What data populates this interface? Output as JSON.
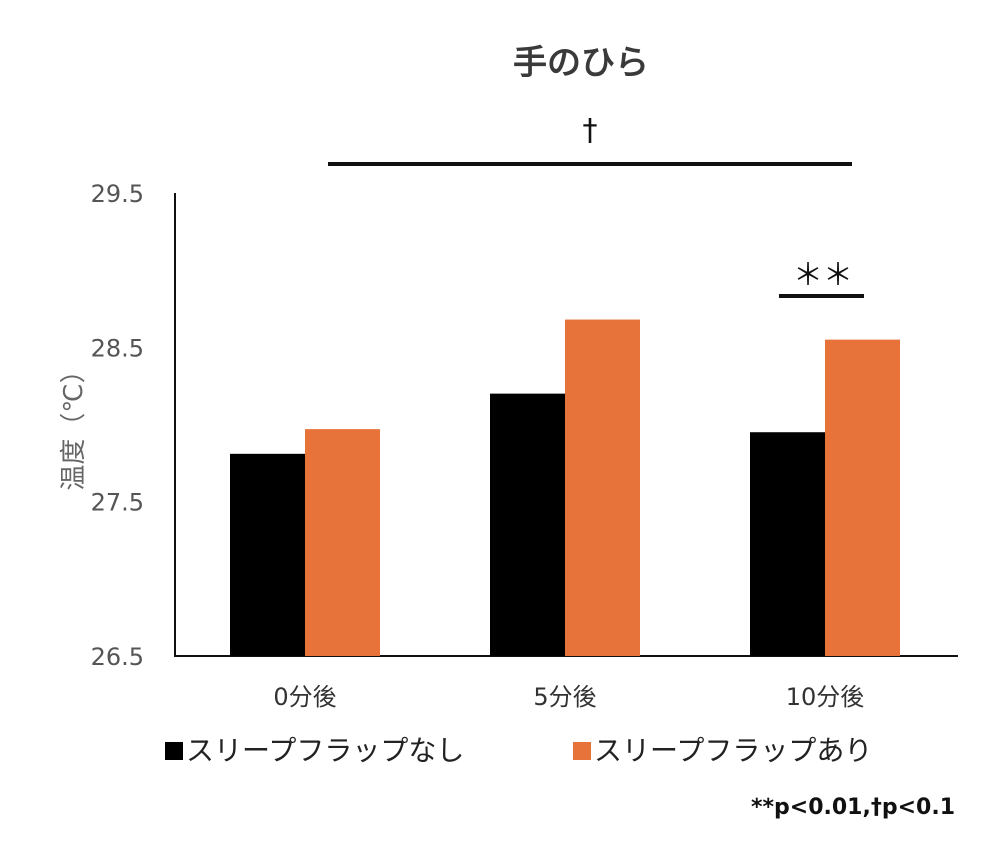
{
  "chart_data": {
    "type": "bar",
    "title": "手のひら",
    "ylabel": "温度（℃）",
    "xlabel": "",
    "ylim": [
      26.5,
      29.5
    ],
    "yticks": [
      "29.5",
      "28.5",
      "27.5",
      "26.5"
    ],
    "categories": [
      "0分後",
      "5分後",
      "10分後"
    ],
    "series": [
      {
        "name": "スリープフラップなし",
        "color": "#000000",
        "values": [
          27.81,
          28.2,
          27.95
        ]
      },
      {
        "name": "スリープフラップあり",
        "color": "#E8733A",
        "values": [
          27.97,
          28.68,
          28.55
        ]
      }
    ],
    "legend": "bottom",
    "grid": false,
    "annotations": {
      "dagger": "†",
      "double_star": "＊＊",
      "footnote": "**p<0.01,†p<0.1"
    }
  }
}
